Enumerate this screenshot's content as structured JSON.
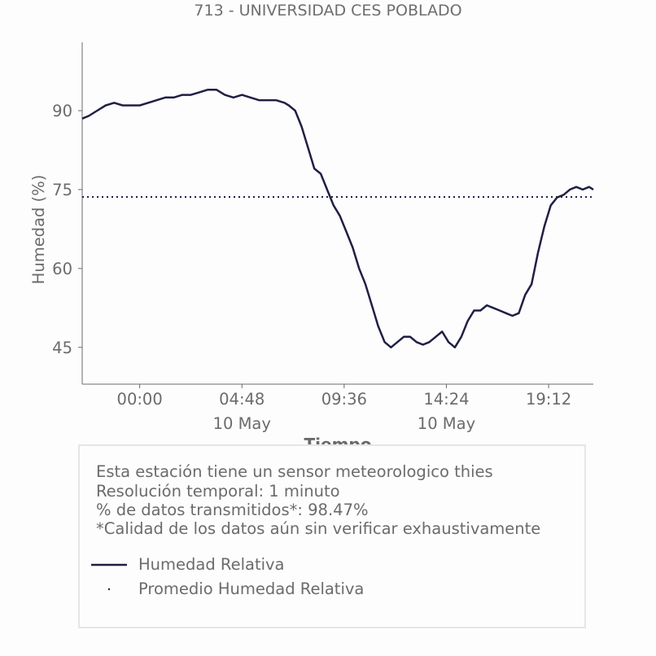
{
  "chart_data": {
    "type": "line",
    "title": "713 - UNIVERSIDAD CES POBLADO",
    "xlabel": "Tiempo",
    "ylabel": "Humedad (%)",
    "ylim": [
      38,
      103
    ],
    "y_ticks": [
      45,
      60,
      75,
      90
    ],
    "x_ticks": [
      {
        "hour": 0,
        "label": "00:00",
        "date": ""
      },
      {
        "hour": 4.8,
        "label": "04:48",
        "date": "10 May"
      },
      {
        "hour": 9.6,
        "label": "09:36",
        "date": ""
      },
      {
        "hour": 14.4,
        "label": "14:24",
        "date": "10 May"
      },
      {
        "hour": 19.2,
        "label": "19:12",
        "date": ""
      }
    ],
    "xlim_hours": [
      -2.7,
      21.3
    ],
    "series": [
      {
        "name": "Humedad Relativa",
        "color": "#1f1f45",
        "style": "solid",
        "x_hours": [
          -2.7,
          -2.4,
          -2.0,
          -1.6,
          -1.2,
          -0.8,
          -0.4,
          0.0,
          0.4,
          0.8,
          1.2,
          1.6,
          2.0,
          2.4,
          2.8,
          3.2,
          3.6,
          4.0,
          4.4,
          4.8,
          5.2,
          5.6,
          6.0,
          6.4,
          6.8,
          7.0,
          7.3,
          7.6,
          7.9,
          8.2,
          8.5,
          8.8,
          9.1,
          9.4,
          9.7,
          10.0,
          10.3,
          10.6,
          10.9,
          11.2,
          11.5,
          11.8,
          12.1,
          12.4,
          12.7,
          13.0,
          13.3,
          13.6,
          13.9,
          14.2,
          14.5,
          14.8,
          15.1,
          15.4,
          15.7,
          16.0,
          16.3,
          16.6,
          16.9,
          17.2,
          17.5,
          17.8,
          18.1,
          18.4,
          18.7,
          19.0,
          19.3,
          19.6,
          19.9,
          20.2,
          20.5,
          20.8,
          21.1,
          21.3
        ],
        "values": [
          88.5,
          89,
          90,
          91,
          91.5,
          91,
          91,
          91,
          91.5,
          92,
          92.5,
          92.5,
          93,
          93,
          93.5,
          94,
          94,
          93,
          92.5,
          93,
          92.5,
          92,
          92,
          92,
          91.5,
          91,
          90,
          87,
          83,
          79,
          78,
          75,
          72,
          70,
          67,
          64,
          60,
          57,
          53,
          49,
          46,
          45,
          46,
          47,
          47,
          46,
          45.5,
          46,
          47,
          48,
          46,
          45,
          47,
          50,
          52,
          52,
          53,
          52.5,
          52,
          51.5,
          51,
          51.5,
          55,
          57,
          63,
          68,
          72,
          73.5,
          74,
          75,
          75.5,
          75,
          75.5,
          75
        ]
      },
      {
        "name": "Promedio Humedad Relativa",
        "color": "#1f1f45",
        "style": "dotted",
        "constant": 73.6
      }
    ]
  },
  "info": {
    "line1": "Esta estación tiene un sensor meteorologico thies",
    "line2": "Resolución temporal: 1 minuto",
    "line3": "% de datos transmitidos*: 98.47%",
    "line4": "*Calidad de los datos aún sin verificar exhaustivamente"
  },
  "legend": {
    "item1": "Humedad Relativa",
    "item2": "Promedio Humedad Relativa"
  },
  "colors": {
    "line": "#1f1f45",
    "axis": "#6b6b6b",
    "text": "#6b6b6b"
  }
}
